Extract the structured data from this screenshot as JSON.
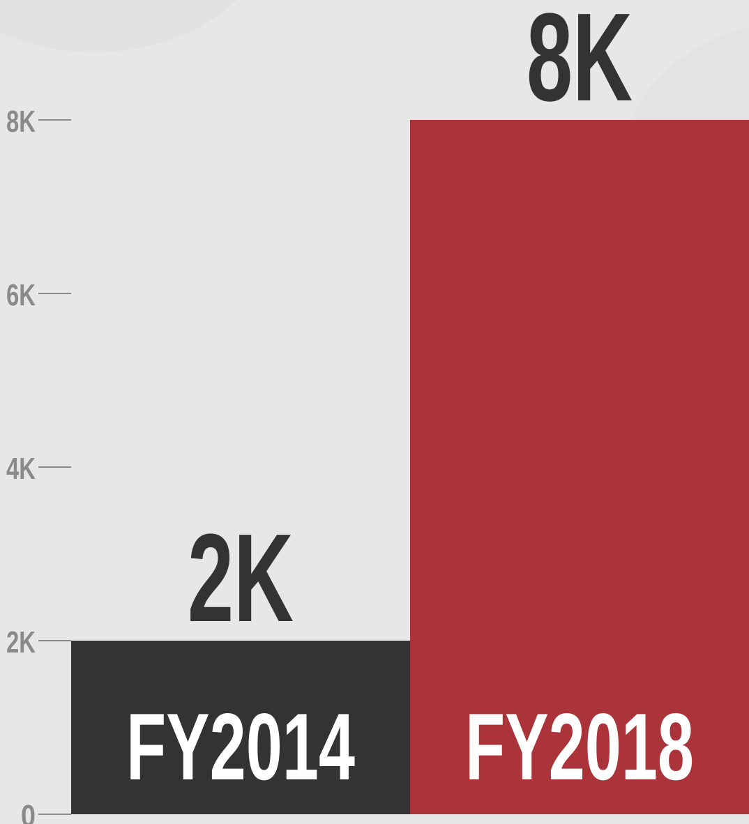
{
  "chart_data": {
    "type": "bar",
    "categories": [
      "FY2014",
      "FY2018"
    ],
    "values": [
      2000,
      8000
    ],
    "value_labels": [
      "2K",
      "8K"
    ],
    "colors": [
      "#333333",
      "#ab343a"
    ],
    "ylim": [
      0,
      8000
    ],
    "yticks": [
      0,
      {
        "value": 2000,
        "label": "2K"
      },
      {
        "value": 4000,
        "label": "4K"
      },
      {
        "value": 6000,
        "label": "6K"
      },
      {
        "value": 8000,
        "label": "8K"
      }
    ]
  }
}
